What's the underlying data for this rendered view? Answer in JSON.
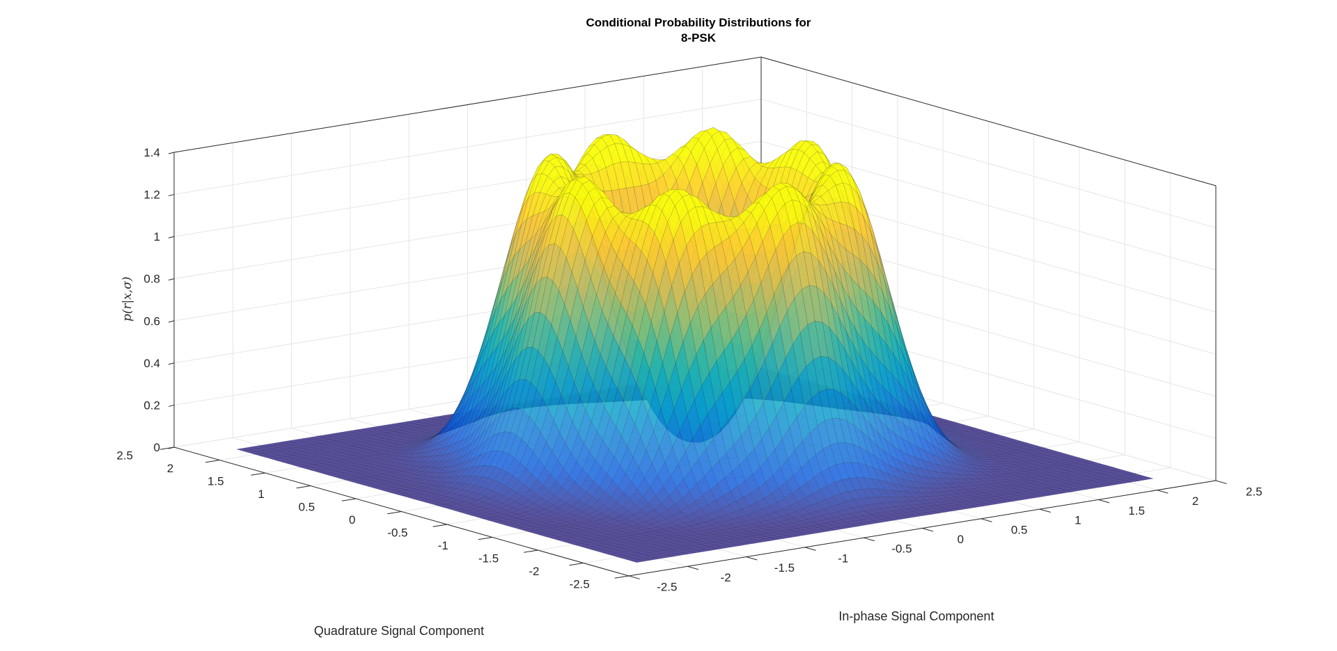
{
  "chart_data": {
    "type": "surface3d",
    "title_line1": "Conditional Probability Distributions for",
    "title_line2": "8-PSK",
    "xlabel": "In-phase Signal Component",
    "ylabel": "Quadrature Signal Component",
    "zlabel": "p(r|x,σ)",
    "xlim": [
      -2.5,
      2.5
    ],
    "ylim": [
      -2.5,
      2.5
    ],
    "zlim": [
      0,
      1.4
    ],
    "x_ticks": [
      "-2.5",
      "-2",
      "-1.5",
      "-1",
      "-0.5",
      "0",
      "0.5",
      "1",
      "1.5",
      "2",
      "2.5"
    ],
    "y_ticks": [
      "-2.5",
      "-2",
      "-1.5",
      "-1",
      "-0.5",
      "0",
      "0.5",
      "1",
      "1.5",
      "2",
      "2.5"
    ],
    "z_ticks": [
      "0",
      "0.2",
      "0.4",
      "0.6",
      "0.8",
      "1",
      "1.2",
      "1.4"
    ],
    "constellation_radius": 1,
    "num_symbols": 8,
    "peak_value": 1.27,
    "grid": true,
    "colormap": "parula",
    "colormap_colors": [
      "#352a87",
      "#0f5cdd",
      "#1481d6",
      "#06a4ca",
      "#2eb7a4",
      "#87bf77",
      "#d1bb59",
      "#fec832",
      "#f9fb0e"
    ]
  }
}
